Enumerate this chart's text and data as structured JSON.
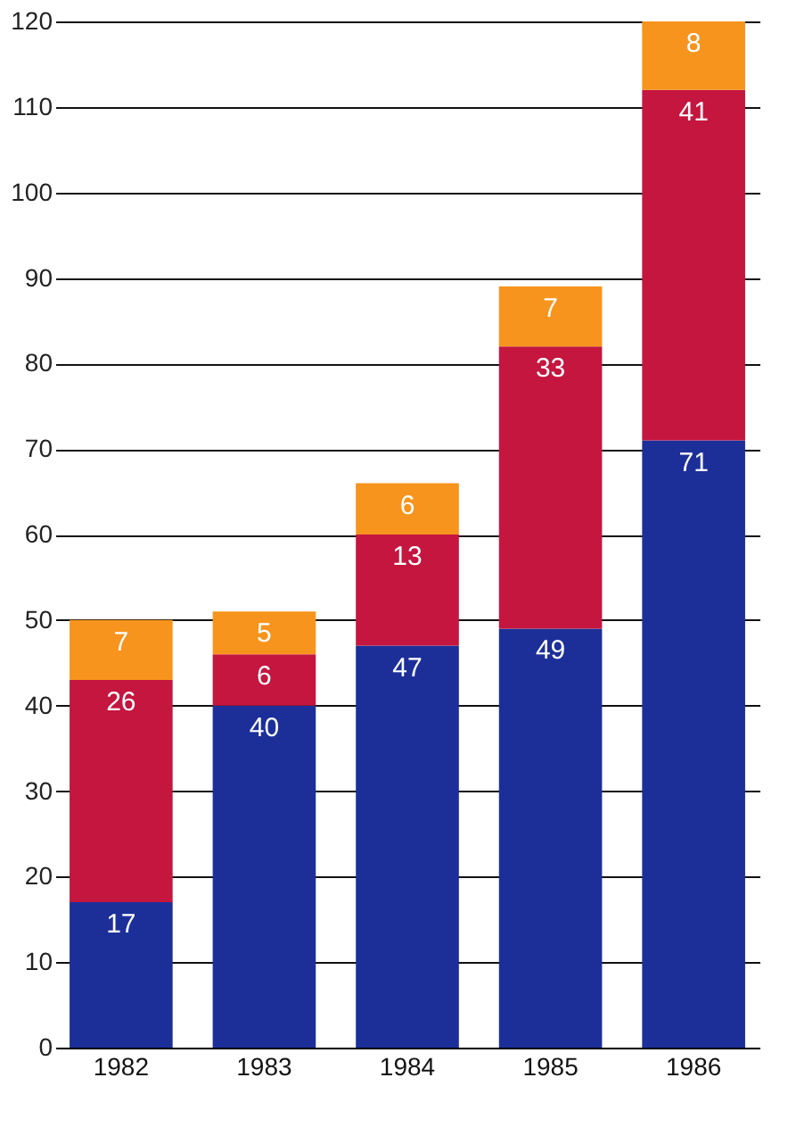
{
  "chart_data": {
    "type": "bar",
    "stacked": true,
    "categories": [
      "1982",
      "1983",
      "1984",
      "1985",
      "1986"
    ],
    "series": [
      {
        "color": "#1c2f99",
        "values": [
          17,
          40,
          47,
          49,
          71
        ]
      },
      {
        "color": "#c4163f",
        "values": [
          26,
          6,
          13,
          33,
          41
        ]
      },
      {
        "color": "#f7941d",
        "values": [
          7,
          5,
          6,
          7,
          8
        ]
      }
    ],
    "ylim": [
      0,
      120
    ],
    "yticks": [
      0,
      10,
      20,
      30,
      40,
      50,
      60,
      70,
      80,
      90,
      100,
      110,
      120
    ],
    "grid": "y",
    "data_labels": true,
    "legend": false
  }
}
